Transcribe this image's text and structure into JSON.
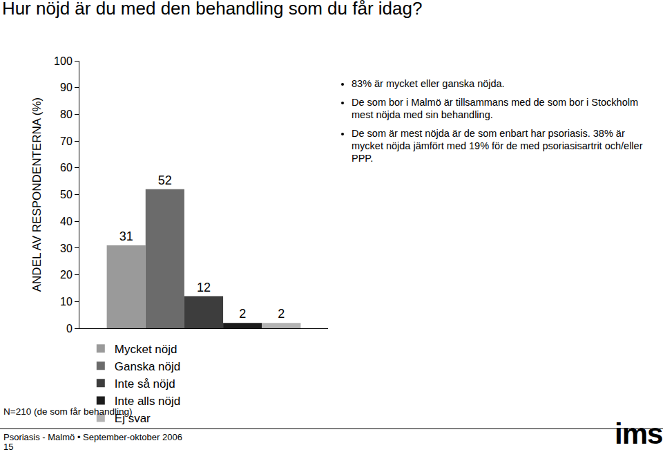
{
  "chart_data": {
    "type": "bar",
    "title": "Hur nöjd är du med den behandling som du får idag?",
    "y_label": "ANDEL AV RESPONDENTERNA (%)",
    "categories": [
      null
    ],
    "series": [
      {
        "name": "Mycket nöjd",
        "color": "#9a9a9a",
        "values": [
          31
        ]
      },
      {
        "name": "Ganska nöjd",
        "color": "#6b6b6b",
        "values": [
          52
        ]
      },
      {
        "name": "Inte så nöjd",
        "color": "#3d3d3d",
        "values": [
          12
        ]
      },
      {
        "name": "Inte alls nöjd",
        "color": "#1c1c1c",
        "values": [
          2
        ]
      },
      {
        "name": "Ej svar",
        "color": "#b3b3b3",
        "values": [
          2
        ]
      }
    ],
    "ylim": [
      0,
      100
    ],
    "yticks": [
      0,
      10,
      20,
      30,
      40,
      50,
      60,
      70,
      80,
      90,
      100
    ],
    "grid": false,
    "legend": "bottom",
    "data_labels": true,
    "annotations": [
      "83% är mycket eller ganska nöjda.",
      "De som bor i Malmö är tillsammans med de som bor i Stockholm mest nöjda med sin behandling.",
      "De som är mest nöjda är de som enbart har psoriasis. 38% är mycket nöjda jämfört med 19% för de med psoriasisartrit och/eller PPP."
    ]
  },
  "footer": {
    "note": "N=210 (de som får behandling)",
    "source": "Psoriasis - Malmö • September-oktober 2006",
    "page": "15",
    "logo": "ims"
  }
}
